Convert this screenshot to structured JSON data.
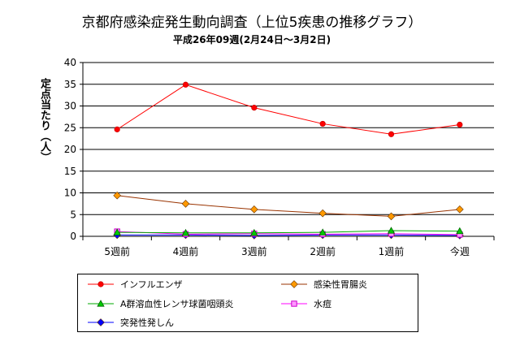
{
  "chart_data": {
    "type": "line",
    "title": "京都府感染症発生動向調査（上位5疾患の推移グラフ）",
    "subtitle": "平成26年09週(2月24日～3月2日)",
    "xlabel": "",
    "ylabel": "定点当たり（人）",
    "categories": [
      "5週前",
      "4週前",
      "3週前",
      "2週前",
      "1週前",
      "今週"
    ],
    "ylim": [
      0,
      40
    ],
    "yticks": [
      0,
      5,
      10,
      15,
      20,
      25,
      30,
      35,
      40
    ],
    "grid": "horizontal",
    "legend_position": "bottom",
    "series": [
      {
        "name": "インフルエンザ",
        "color": "#ff0000",
        "marker": "circle",
        "marker_color": "#ff0000",
        "values": [
          24.6,
          34.9,
          29.6,
          25.9,
          23.5,
          25.7
        ]
      },
      {
        "name": "感染性胃腸炎",
        "color": "#993300",
        "marker": "diamond",
        "marker_color": "#ff9900",
        "values": [
          9.4,
          7.5,
          6.2,
          5.3,
          4.6,
          6.2
        ]
      },
      {
        "name": "A群溶血性レンサ球菌咽頭炎",
        "color": "#00aa00",
        "marker": "triangle",
        "marker_color": "#00cc00",
        "values": [
          0.9,
          0.8,
          0.8,
          0.9,
          1.3,
          1.2
        ]
      },
      {
        "name": "水痘",
        "color": "#ff00ff",
        "marker": "square",
        "marker_color": "#ff99ff",
        "values": [
          1.1,
          0.5,
          0.6,
          0.5,
          0.6,
          0.4
        ]
      },
      {
        "name": "突発性発しん",
        "color": "#0000ff",
        "marker": "diamond",
        "marker_color": "#0000ff",
        "values": [
          0.3,
          0.3,
          0.2,
          0.3,
          0.3,
          0.2
        ]
      }
    ]
  }
}
